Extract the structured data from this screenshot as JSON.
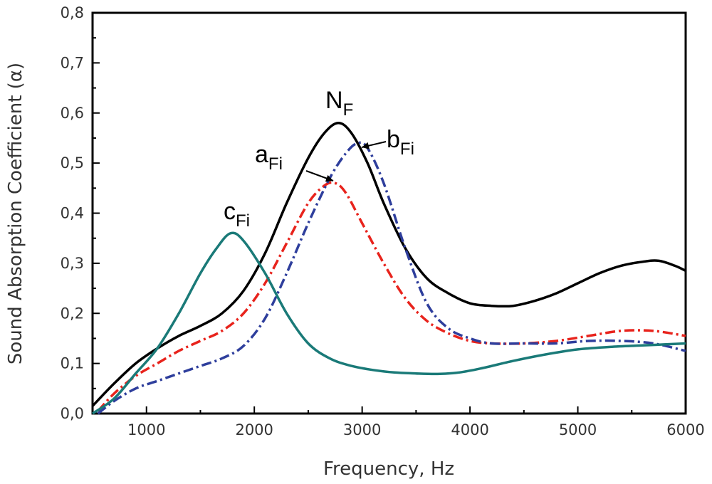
{
  "chart_data": {
    "type": "line",
    "title": "",
    "xlabel": "Frequency, Hz",
    "ylabel": "Sound Absorption Coefficient (α)",
    "xlim": [
      500,
      6000
    ],
    "ylim": [
      0,
      0.8
    ],
    "xticks": [
      1000,
      2000,
      3000,
      4000,
      5000,
      6000
    ],
    "xtick_labels": [
      "1000",
      "2000",
      "3000",
      "4000",
      "5000",
      "6000"
    ],
    "yticks": [
      0,
      0.1,
      0.2,
      0.3,
      0.4,
      0.5,
      0.6,
      0.7,
      0.8
    ],
    "ytick_labels": [
      "0,0",
      "0,1",
      "0,2",
      "0,3",
      "0,4",
      "0,5",
      "0,6",
      "0,7",
      "0,8"
    ],
    "grid": false,
    "legend": "none",
    "series": [
      {
        "name": "N_F",
        "label_main": "N",
        "label_sub": "F",
        "color": "#000000",
        "style": "solid",
        "x": [
          500,
          700,
          900,
          1100,
          1300,
          1500,
          1700,
          1900,
          2100,
          2300,
          2500,
          2650,
          2780,
          2900,
          3050,
          3200,
          3400,
          3600,
          3800,
          4000,
          4200,
          4400,
          4600,
          4800,
          5000,
          5200,
          5400,
          5600,
          5750,
          5900,
          6000
        ],
        "y": [
          0.015,
          0.06,
          0.1,
          0.13,
          0.155,
          0.175,
          0.2,
          0.245,
          0.32,
          0.42,
          0.51,
          0.56,
          0.58,
          0.56,
          0.5,
          0.42,
          0.33,
          0.27,
          0.24,
          0.22,
          0.215,
          0.215,
          0.225,
          0.24,
          0.26,
          0.28,
          0.295,
          0.303,
          0.305,
          0.295,
          0.285
        ]
      },
      {
        "name": "a_Fi",
        "label_main": "a",
        "label_sub": "Fi",
        "color": "#e8231c",
        "style": "dashdot",
        "x": [
          550,
          700,
          900,
          1100,
          1300,
          1500,
          1700,
          1900,
          2100,
          2300,
          2500,
          2650,
          2750,
          2850,
          3000,
          3200,
          3400,
          3600,
          3800,
          4000,
          4200,
          4500,
          4800,
          5100,
          5400,
          5700,
          6000
        ],
        "y": [
          0.005,
          0.04,
          0.075,
          0.1,
          0.125,
          0.145,
          0.165,
          0.2,
          0.26,
          0.34,
          0.42,
          0.455,
          0.46,
          0.44,
          0.38,
          0.3,
          0.23,
          0.185,
          0.16,
          0.145,
          0.14,
          0.14,
          0.145,
          0.155,
          0.165,
          0.165,
          0.155
        ]
      },
      {
        "name": "b_Fi",
        "label_main": "b",
        "label_sub": "Fi",
        "color": "#2e3e9c",
        "style": "dashdot",
        "x": [
          550,
          700,
          900,
          1100,
          1300,
          1500,
          1700,
          1900,
          2100,
          2300,
          2500,
          2700,
          2850,
          2960,
          3050,
          3200,
          3400,
          3600,
          3800,
          4000,
          4200,
          4500,
          4800,
          5100,
          5400,
          5700,
          6000
        ],
        "y": [
          0.0,
          0.025,
          0.05,
          0.065,
          0.08,
          0.095,
          0.11,
          0.135,
          0.19,
          0.28,
          0.38,
          0.47,
          0.52,
          0.54,
          0.53,
          0.46,
          0.33,
          0.22,
          0.17,
          0.15,
          0.14,
          0.14,
          0.14,
          0.145,
          0.145,
          0.14,
          0.125
        ]
      },
      {
        "name": "c_Fi",
        "label_main": "c",
        "label_sub": "Fi",
        "color": "#1a7a78",
        "style": "solid",
        "x": [
          500,
          700,
          900,
          1100,
          1300,
          1500,
          1650,
          1780,
          1900,
          2100,
          2300,
          2500,
          2700,
          2900,
          3100,
          3300,
          3500,
          3700,
          3900,
          4100,
          4400,
          4700,
          5000,
          5300,
          5600,
          5800,
          6000
        ],
        "y": [
          0.0,
          0.03,
          0.08,
          0.13,
          0.2,
          0.28,
          0.33,
          0.36,
          0.345,
          0.28,
          0.2,
          0.14,
          0.11,
          0.095,
          0.087,
          0.082,
          0.08,
          0.079,
          0.082,
          0.09,
          0.105,
          0.118,
          0.128,
          0.133,
          0.136,
          0.138,
          0.14
        ]
      }
    ]
  }
}
